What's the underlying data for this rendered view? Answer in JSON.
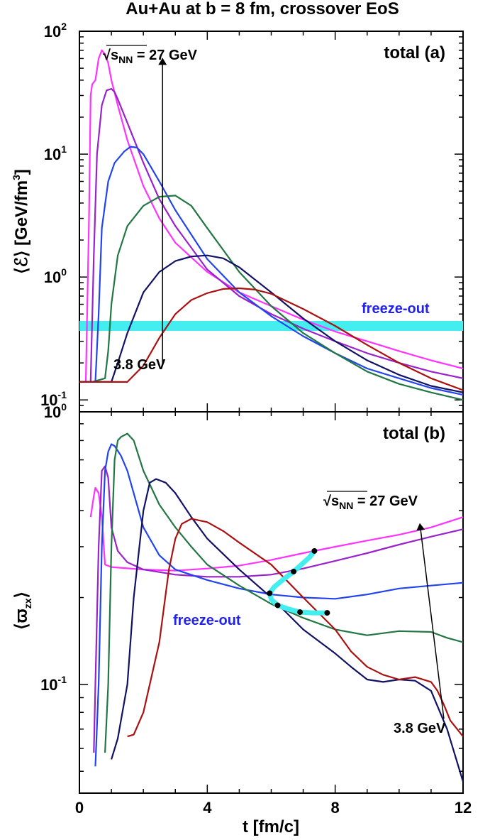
{
  "title": "Au+Au at b = 8 fm, crossover EoS",
  "xlabel": "t [fm/c]",
  "colors": {
    "s27": "#ff33ff",
    "s19_6": "#9922cc",
    "s14_5": "#2244ee",
    "s7_7": "#227744",
    "s5_2": "#111166",
    "s3_8": "#aa1111",
    "freezeout": "#44eeee",
    "freezeout_label": "#2222ee"
  },
  "chart_data": [
    {
      "type": "line",
      "panel_label": "total  (a)",
      "ylabel_text": "⟨ℰ⟩ [GeV/fm",
      "ylabel_sup": "3",
      "ylabel_tail": "]",
      "yscale": "log",
      "xlim": [
        0,
        12
      ],
      "ylim": [
        0.08,
        100
      ],
      "xticks": [
        0,
        4,
        8,
        12
      ],
      "xtick_labels": [
        "0",
        "4",
        "8",
        "12"
      ],
      "yticks": [
        100,
        10,
        1,
        0.1
      ],
      "ytick_labels": [
        {
          "base": "10",
          "exp": "2"
        },
        {
          "base": "10",
          "exp": "1"
        },
        {
          "base": "10",
          "exp": "0"
        },
        {
          "base": "10",
          "exp": "-1"
        }
      ],
      "top_annotation": {
        "sqrt": "s",
        "sub": "NN",
        "text": " = 27 GeV"
      },
      "bottom_annotation": "3.8 GeV",
      "freezeout_label": "freeze-out",
      "freezeout_band": {
        "y": 0.4,
        "x": [
          0,
          12
        ]
      },
      "arrow": {
        "from": [
          2.6,
          0.19
        ],
        "to": [
          2.6,
          60
        ]
      },
      "series": [
        {
          "key": "s27",
          "x": [
            0,
            0.2,
            0.3,
            0.35,
            0.4,
            0.5,
            0.6,
            0.7,
            0.8,
            0.9,
            1.0,
            1.2,
            1.5,
            2.0,
            2.5,
            3,
            4,
            5,
            6,
            7,
            8,
            9,
            10,
            11,
            12
          ],
          "values": [
            0.14,
            0.14,
            3,
            30,
            37,
            40,
            60,
            70,
            65,
            55,
            40,
            25,
            13,
            5.5,
            3,
            1.9,
            1.1,
            0.75,
            0.58,
            0.45,
            0.36,
            0.3,
            0.25,
            0.21,
            0.18
          ]
        },
        {
          "key": "s19_6",
          "x": [
            0,
            0.35,
            0.45,
            0.55,
            0.7,
            0.85,
            1.0,
            1.1,
            1.2,
            1.5,
            2.0,
            2.5,
            3,
            4,
            5,
            6,
            7,
            8,
            9,
            10,
            11,
            12
          ],
          "values": [
            0.14,
            0.14,
            1.5,
            10,
            25,
            33,
            34,
            32,
            28,
            18,
            8.5,
            4.3,
            2.6,
            1.15,
            0.7,
            0.5,
            0.38,
            0.3,
            0.24,
            0.2,
            0.17,
            0.15
          ]
        },
        {
          "key": "s14_5",
          "x": [
            0,
            0.5,
            0.6,
            0.7,
            0.9,
            1.1,
            1.4,
            1.6,
            1.8,
            2.0,
            2.5,
            3,
            4,
            5,
            6,
            7,
            8,
            9,
            10,
            11,
            12
          ],
          "values": [
            0.14,
            0.14,
            0.5,
            2.5,
            6,
            8.5,
            10.5,
            11.5,
            11.3,
            10,
            6,
            3.5,
            1.4,
            0.75,
            0.48,
            0.33,
            0.24,
            0.18,
            0.15,
            0.125,
            0.11
          ]
        },
        {
          "key": "s7_7",
          "x": [
            0,
            0.4,
            0.8,
            0.9,
            1.0,
            1.2,
            1.5,
            2.0,
            2.5,
            3.0,
            3.5,
            4,
            5,
            6,
            7,
            8,
            9,
            10,
            11,
            12
          ],
          "values": [
            0.14,
            0.14,
            0.15,
            0.25,
            0.6,
            1.5,
            2.6,
            3.8,
            4.5,
            4.6,
            3.8,
            2.5,
            1.1,
            0.58,
            0.35,
            0.24,
            0.17,
            0.135,
            0.115,
            0.1
          ]
        },
        {
          "key": "s5_2",
          "x": [
            0,
            0.5,
            1.0,
            1.2,
            1.5,
            2.0,
            2.5,
            3,
            3.5,
            4,
            4.5,
            5,
            6,
            7,
            8,
            9,
            10,
            11,
            12
          ],
          "values": [
            0.14,
            0.14,
            0.14,
            0.2,
            0.35,
            0.75,
            1.1,
            1.35,
            1.47,
            1.5,
            1.42,
            1.2,
            0.75,
            0.46,
            0.3,
            0.21,
            0.16,
            0.13,
            0.115
          ]
        },
        {
          "key": "s3_8",
          "x": [
            0,
            0.5,
            1.0,
            1.5,
            2.0,
            2.5,
            3,
            3.5,
            4,
            4.5,
            5,
            5.5,
            6,
            7,
            8,
            9,
            10,
            11,
            12
          ],
          "values": [
            0.14,
            0.14,
            0.14,
            0.14,
            0.19,
            0.32,
            0.5,
            0.65,
            0.74,
            0.8,
            0.81,
            0.79,
            0.73,
            0.55,
            0.4,
            0.28,
            0.2,
            0.15,
            0.12
          ]
        }
      ]
    },
    {
      "type": "line",
      "panel_label": "total  (b)",
      "ylabel_text": "⟨ϖ",
      "ylabel_sub": "zx",
      "ylabel_tail": "⟩",
      "yscale": "log",
      "xlim": [
        0,
        12
      ],
      "ylim": [
        0.042,
        0.88
      ],
      "xticks": [
        0,
        4,
        8,
        12
      ],
      "xtick_labels": [
        "0",
        "4",
        "8",
        "12"
      ],
      "yticks": [
        0.1
      ],
      "ytick_labels": [
        {
          "base": "10",
          "exp": "-1"
        }
      ],
      "top_annotation": {
        "sqrt": "s",
        "sub": "NN",
        "text": " = 27 GeV"
      },
      "bottom_annotation": "3.8 GeV",
      "freezeout_label": "freeze-out",
      "freezeout_curve": {
        "x": [
          7.35,
          7.2,
          6.7,
          6.4,
          6.1,
          5.95,
          6.0,
          6.2,
          6.5,
          6.9,
          7.3,
          7.75
        ],
        "y": [
          0.29,
          0.276,
          0.246,
          0.232,
          0.218,
          0.207,
          0.197,
          0.188,
          0.183,
          0.178,
          0.177,
          0.177
        ]
      },
      "freezeout_points": {
        "x": [
          7.35,
          6.7,
          5.95,
          6.2,
          6.9,
          7.75
        ],
        "y": [
          0.29,
          0.246,
          0.207,
          0.188,
          0.178,
          0.177
        ]
      },
      "arrow": {
        "from": [
          11.4,
          0.076
        ],
        "to": [
          10.65,
          0.36
        ]
      },
      "series": [
        {
          "key": "s27",
          "x": [
            0.35,
            0.45,
            0.5,
            0.6,
            0.7,
            0.8,
            1,
            2,
            3,
            4,
            5,
            6,
            7,
            8,
            9,
            10,
            11,
            12
          ],
          "values": [
            0.38,
            0.45,
            0.48,
            0.46,
            0.38,
            0.26,
            0.255,
            0.25,
            0.248,
            0.252,
            0.258,
            0.27,
            0.285,
            0.3,
            0.315,
            0.33,
            0.35,
            0.38
          ]
        },
        {
          "key": "s19_6",
          "x": [
            0.45,
            0.5,
            0.6,
            0.7,
            0.8,
            0.9,
            1.0,
            1.2,
            1.5,
            2,
            3,
            4,
            5,
            6,
            7,
            8,
            9,
            10,
            11,
            12
          ],
          "values": [
            0.058,
            0.1,
            0.3,
            0.55,
            0.57,
            0.52,
            0.35,
            0.29,
            0.265,
            0.25,
            0.24,
            0.236,
            0.236,
            0.24,
            0.252,
            0.268,
            0.285,
            0.305,
            0.325,
            0.345
          ]
        },
        {
          "key": "s14_5",
          "x": [
            0.5,
            0.6,
            0.7,
            0.8,
            0.9,
            1.0,
            1.1,
            1.3,
            1.5,
            1.8,
            2.0,
            2.5,
            3,
            4,
            5,
            6,
            7,
            8,
            9,
            10,
            11,
            12
          ],
          "values": [
            0.052,
            0.1,
            0.3,
            0.55,
            0.64,
            0.68,
            0.67,
            0.62,
            0.55,
            0.42,
            0.35,
            0.28,
            0.25,
            0.23,
            0.215,
            0.205,
            0.2,
            0.198,
            0.205,
            0.215,
            0.22,
            0.225
          ]
        },
        {
          "key": "s7_7",
          "x": [
            0.8,
            0.9,
            1.0,
            1.1,
            1.2,
            1.3,
            1.5,
            1.7,
            2.0,
            2.5,
            3,
            3.5,
            4,
            5,
            6,
            7,
            8,
            9,
            10,
            11,
            11.5,
            12
          ],
          "values": [
            0.058,
            0.1,
            0.3,
            0.6,
            0.7,
            0.72,
            0.74,
            0.7,
            0.55,
            0.42,
            0.35,
            0.3,
            0.26,
            0.22,
            0.19,
            0.17,
            0.155,
            0.148,
            0.153,
            0.152,
            0.145,
            0.14
          ]
        },
        {
          "key": "s5_2",
          "x": [
            1.0,
            1.2,
            1.5,
            1.7,
            2.0,
            2.2,
            2.4,
            2.7,
            3,
            3.5,
            4,
            5,
            6,
            7,
            8,
            8.5,
            9,
            9.5,
            10,
            10.5,
            11,
            11.5,
            12
          ],
          "values": [
            0.055,
            0.065,
            0.1,
            0.2,
            0.4,
            0.5,
            0.515,
            0.5,
            0.46,
            0.38,
            0.32,
            0.25,
            0.2,
            0.155,
            0.128,
            0.115,
            0.104,
            0.102,
            0.104,
            0.103,
            0.095,
            0.07,
            0.046
          ]
        },
        {
          "key": "s3_8",
          "x": [
            1.5,
            1.7,
            2.0,
            2.2,
            2.5,
            2.8,
            3.0,
            3.2,
            3.5,
            4,
            4.5,
            5,
            6,
            7,
            8,
            8.5,
            9,
            9.5,
            10,
            10.5,
            11,
            11.2,
            11.4,
            11.6,
            12
          ],
          "values": [
            0.066,
            0.067,
            0.08,
            0.1,
            0.14,
            0.25,
            0.32,
            0.36,
            0.375,
            0.365,
            0.34,
            0.31,
            0.26,
            0.2,
            0.155,
            0.13,
            0.115,
            0.108,
            0.104,
            0.106,
            0.102,
            0.095,
            0.085,
            0.075,
            0.066
          ]
        }
      ]
    }
  ]
}
